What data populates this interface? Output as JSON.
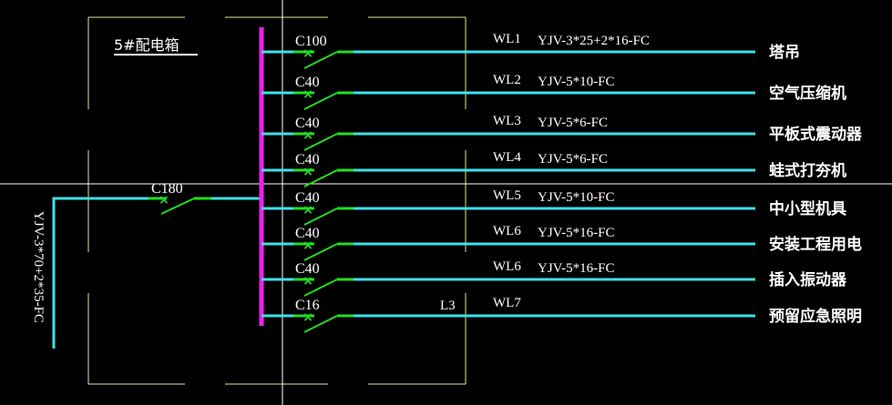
{
  "panel_title": "5#配电箱",
  "incoming": {
    "breaker": "C180",
    "cable": "YJV-3*70+2*35-FC"
  },
  "phase_label": "L3",
  "circuits": [
    {
      "breaker": "C100",
      "id": "WL1",
      "cable": "YJV-3*25+2*16-FC",
      "load": "塔吊"
    },
    {
      "breaker": "C40",
      "id": "WL2",
      "cable": "YJV-5*10-FC",
      "load": "空气压缩机"
    },
    {
      "breaker": "C40",
      "id": "WL3",
      "cable": "YJV-5*6-FC",
      "load": "平板式震动器"
    },
    {
      "breaker": "C40",
      "id": "WL4",
      "cable": "YJV-5*6-FC",
      "load": "蛙式打夯机"
    },
    {
      "breaker": "C40",
      "id": "WL5",
      "cable": "YJV-5*10-FC",
      "load": "中小型机具"
    },
    {
      "breaker": "C40",
      "id": "WL6",
      "cable": "YJV-5*16-FC",
      "load": "安装工程用电"
    },
    {
      "breaker": "C40",
      "id": "WL6",
      "cable": "YJV-5*16-FC",
      "load": "插入振动器"
    },
    {
      "breaker": "C16",
      "id": "WL7",
      "cable": "",
      "load": "预留应急照明"
    }
  ],
  "colors": {
    "wire": "#3fe0e8",
    "breaker": "#22dd22",
    "busbar": "#ee22ee",
    "enclosure": "#e8e49a",
    "background": "#000000"
  }
}
